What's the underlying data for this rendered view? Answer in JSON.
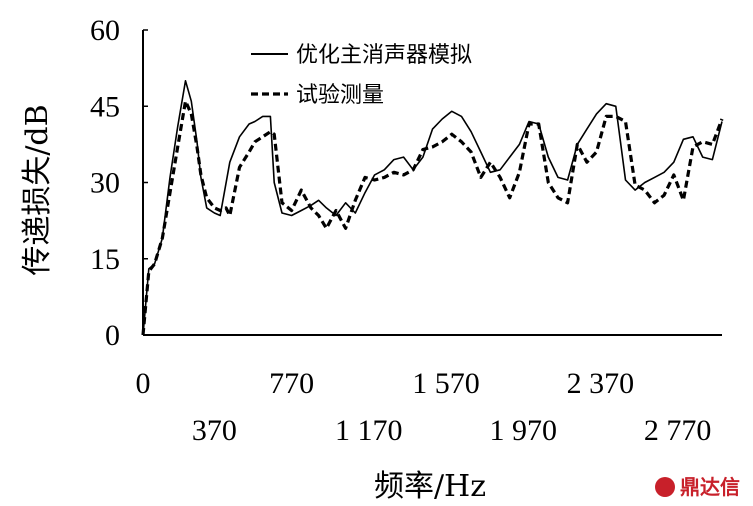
{
  "chart_data": {
    "type": "line",
    "xlabel": "频率/Hz",
    "ylabel": "传递损失/dB",
    "xlim": [
      0,
      3000
    ],
    "ylim": [
      0,
      60
    ],
    "yticks": [
      0,
      15,
      30,
      45,
      60
    ],
    "xticks_row1": [
      {
        "value": 0,
        "label": "0"
      },
      {
        "value": 770,
        "label": "770"
      },
      {
        "value": 1570,
        "label": "1 570"
      },
      {
        "value": 2370,
        "label": "2 370"
      }
    ],
    "xticks_row2": [
      {
        "value": 370,
        "label": "370"
      },
      {
        "value": 1170,
        "label": "1 170"
      },
      {
        "value": 1970,
        "label": "1 970"
      },
      {
        "value": 2770,
        "label": "2 770"
      }
    ],
    "legend_position": "top",
    "series": [
      {
        "name": "优化主消声器模拟",
        "style": "solid",
        "x": [
          0,
          30,
          60,
          100,
          140,
          180,
          220,
          250,
          280,
          300,
          330,
          370,
          400,
          450,
          500,
          550,
          580,
          620,
          660,
          680,
          720,
          770,
          820,
          870,
          910,
          950,
          1000,
          1050,
          1100,
          1150,
          1200,
          1250,
          1300,
          1350,
          1400,
          1450,
          1500,
          1550,
          1600,
          1650,
          1700,
          1750,
          1800,
          1850,
          1900,
          1950,
          2000,
          2050,
          2100,
          2150,
          2200,
          2250,
          2300,
          2350,
          2400,
          2450,
          2500,
          2550,
          2600,
          2650,
          2700,
          2750,
          2800,
          2850,
          2900,
          2950,
          3000
        ],
        "y": [
          0,
          13,
          14,
          19,
          31,
          41,
          50,
          46,
          38,
          31,
          25,
          24,
          23.5,
          34,
          39,
          41.5,
          42,
          43,
          43,
          30,
          24,
          23.5,
          24.5,
          25.5,
          26.5,
          25,
          23.5,
          26,
          24,
          28,
          31.5,
          32.5,
          34.5,
          35,
          32.5,
          35,
          40.5,
          42.5,
          44,
          43,
          40,
          36,
          32,
          32.5,
          35,
          37.5,
          42,
          41.5,
          35,
          31,
          30.5,
          37.5,
          40.5,
          43.5,
          45.5,
          45,
          30.5,
          28.5,
          30,
          31,
          32,
          34,
          38.5,
          39,
          35,
          34.5,
          42
        ]
      },
      {
        "name": "试验测量",
        "style": "dashed",
        "x": [
          0,
          30,
          60,
          100,
          140,
          180,
          220,
          250,
          280,
          300,
          330,
          370,
          400,
          430,
          450,
          500,
          550,
          580,
          620,
          660,
          680,
          720,
          770,
          820,
          870,
          910,
          950,
          1000,
          1050,
          1100,
          1150,
          1200,
          1250,
          1300,
          1350,
          1400,
          1450,
          1500,
          1550,
          1600,
          1650,
          1700,
          1750,
          1800,
          1850,
          1900,
          1950,
          2000,
          2050,
          2100,
          2150,
          2200,
          2250,
          2300,
          2350,
          2400,
          2450,
          2500,
          2550,
          2600,
          2650,
          2700,
          2750,
          2800,
          2850,
          2900,
          2950,
          3000
        ],
        "y": [
          0,
          12.5,
          14,
          19,
          28,
          37,
          46,
          43.5,
          37,
          31.5,
          27,
          25,
          24.5,
          25,
          23.5,
          33,
          36,
          38,
          39,
          40,
          39.5,
          26,
          24.5,
          28.5,
          25,
          23.5,
          21,
          24.5,
          21,
          26.5,
          31,
          30.5,
          31,
          32,
          31.5,
          32.5,
          36.5,
          37,
          38,
          39.5,
          38,
          36,
          31,
          34,
          31,
          27,
          32,
          41.5,
          41.5,
          30,
          27,
          26,
          37.5,
          34,
          36,
          43,
          43,
          42,
          29.5,
          28.5,
          26,
          27.5,
          31.5,
          26.5,
          37,
          38,
          37.5,
          42.5
        ]
      }
    ]
  },
  "watermark": {
    "text": "鼎达信",
    "color": "#c8202a"
  }
}
